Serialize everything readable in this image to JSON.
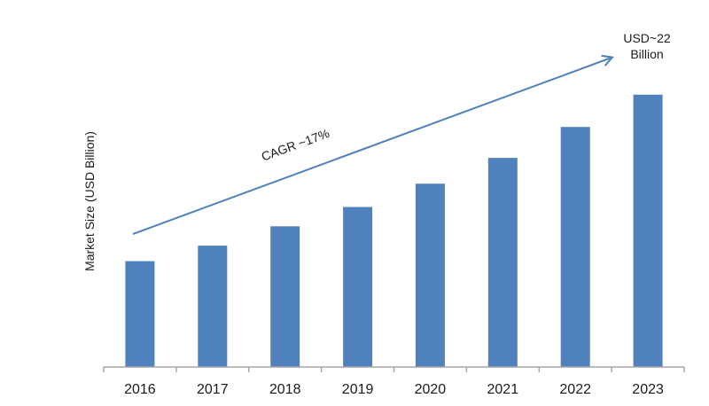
{
  "chart_data": {
    "type": "bar",
    "categories": [
      "2016",
      "2017",
      "2018",
      "2019",
      "2020",
      "2021",
      "2022",
      "2023"
    ],
    "values": [
      8.2,
      9.4,
      10.9,
      12.4,
      14.2,
      16.2,
      18.6,
      21.1
    ],
    "ylabel": "Market Size (USD Billion)",
    "xlabel": "",
    "ylim": [
      0,
      25
    ],
    "y_tick_labels_shown": false,
    "grid": false,
    "bar_color": "#4F81BD",
    "axis_color": "#A6A6A6",
    "annotations": {
      "cagr_label": "CAGR ~17%",
      "endpoint_line1": "USD~22",
      "endpoint_line2": "Billion",
      "arrow_color": "#4F81BD"
    }
  }
}
